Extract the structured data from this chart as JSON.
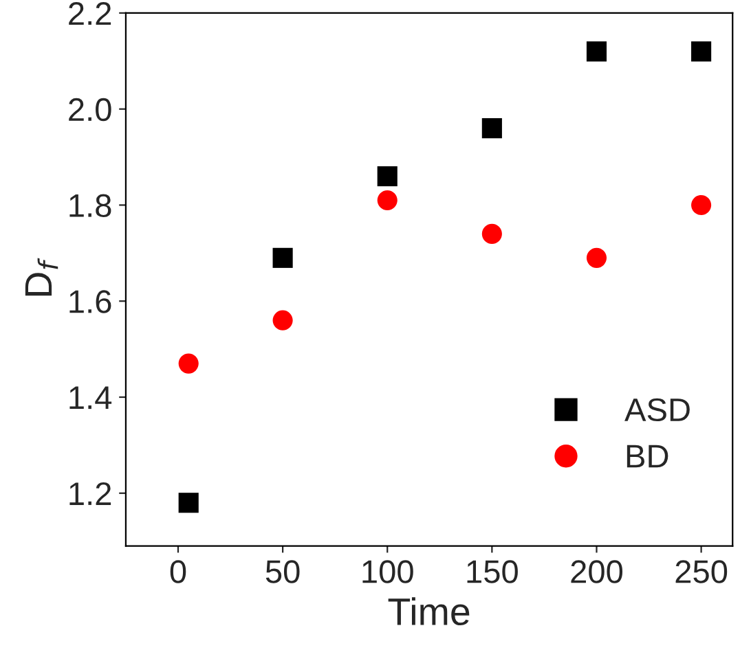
{
  "chart_data": {
    "type": "scatter",
    "xlabel": "Time",
    "ylabel": "D$_{f}$",
    "x": [
      5,
      50,
      100,
      150,
      200,
      250
    ],
    "series": [
      {
        "name": "ASD",
        "color": "#000000",
        "marker": "square",
        "values": [
          1.18,
          1.69,
          1.86,
          1.96,
          2.12,
          2.12
        ]
      },
      {
        "name": "BD",
        "color": "#ff0000",
        "marker": "circle",
        "values": [
          1.47,
          1.56,
          1.81,
          1.74,
          1.69,
          1.8
        ]
      }
    ],
    "xlim": [
      -25,
      265
    ],
    "xticks": [
      0,
      50,
      100,
      150,
      200,
      250
    ],
    "ylim": [
      1.09,
      2.2
    ],
    "yticks": [
      1.2,
      1.4,
      1.6,
      1.8,
      {
        "value": 2,
        "label": "2.0"
      },
      2.2
    ],
    "grid": false,
    "legend": "bottom right"
  }
}
